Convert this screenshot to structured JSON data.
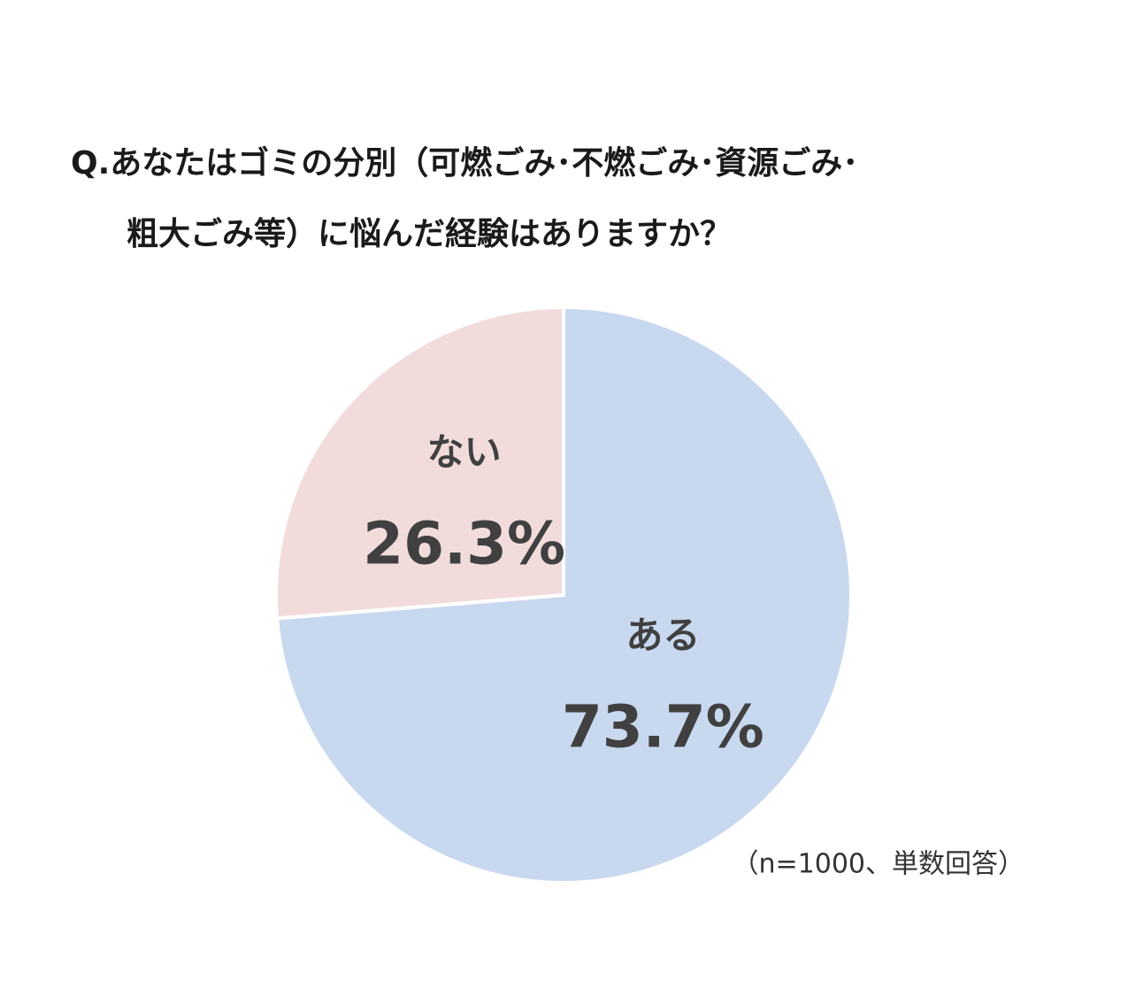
{
  "chart_data": {
    "type": "pie",
    "title_lines": [
      "Q.あなたはゴミの分別（可燃ごみ･不燃ごみ･資源ごみ･",
      "粗大ごみ等）に悩んだ経験はありますか？"
    ],
    "categories": [
      "ある",
      "ない"
    ],
    "values": [
      73.7,
      26.3
    ],
    "value_labels": [
      "73.7%",
      "26.3%"
    ],
    "colors": [
      "#c8d8ef",
      "#f2dcdb"
    ],
    "annotation": "（n=1000、単数回答）"
  }
}
